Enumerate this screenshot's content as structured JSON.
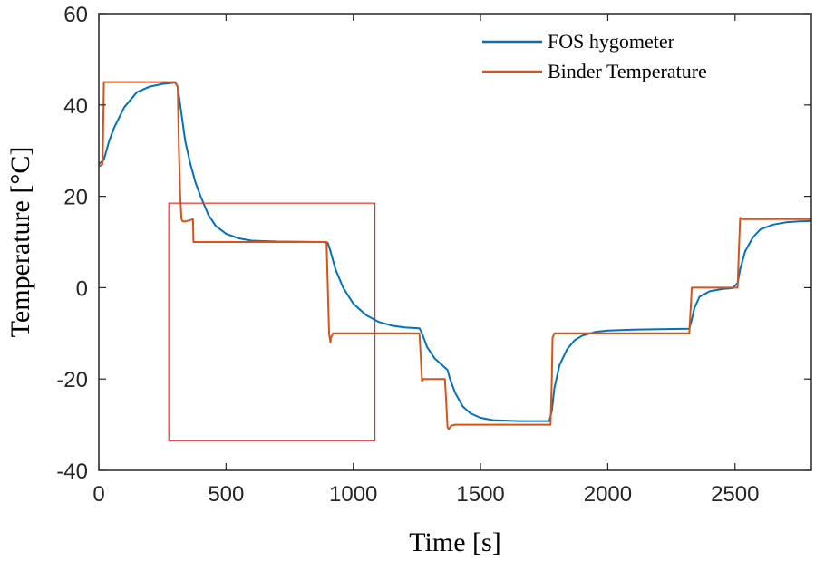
{
  "chart_data": {
    "type": "line",
    "title": "",
    "xlabel": "Time [s]",
    "ylabel": "Temperature [°C]",
    "xlim": [
      0,
      2800
    ],
    "ylim": [
      -40,
      60
    ],
    "xticks": [
      0,
      500,
      1000,
      1500,
      2000,
      2500
    ],
    "xtick_labels": [
      "0",
      "500",
      "1000",
      "1500",
      "2000",
      "2500"
    ],
    "yticks": [
      -40,
      -20,
      0,
      20,
      40,
      60
    ],
    "ytick_labels": [
      "-40",
      "-20",
      "0",
      "20",
      "40",
      "60"
    ],
    "grid": false,
    "legend_position": "top-right",
    "series": [
      {
        "name": "FOS hygometer",
        "color": "#0072BD",
        "x": [
          0,
          20,
          40,
          60,
          100,
          150,
          200,
          250,
          300,
          310,
          320,
          330,
          340,
          360,
          380,
          400,
          430,
          460,
          500,
          550,
          600,
          700,
          800,
          880,
          900,
          910,
          930,
          960,
          1000,
          1050,
          1100,
          1150,
          1200,
          1260,
          1270,
          1290,
          1320,
          1350,
          1370,
          1380,
          1400,
          1430,
          1460,
          1500,
          1550,
          1600,
          1650,
          1700,
          1770,
          1780,
          1790,
          1810,
          1840,
          1870,
          1900,
          1950,
          2000,
          2100,
          2200,
          2320,
          2330,
          2340,
          2360,
          2400,
          2450,
          2490,
          2510,
          2520,
          2540,
          2570,
          2600,
          2650,
          2700,
          2750,
          2800
        ],
        "y": [
          27,
          28,
          32,
          35,
          39.5,
          42.8,
          44,
          44.6,
          44.9,
          44,
          40,
          36,
          32,
          27,
          23,
          20,
          16,
          13.5,
          11.8,
          10.8,
          10.3,
          10.1,
          10.05,
          10,
          9.8,
          8,
          4,
          0,
          -3.5,
          -6,
          -7.5,
          -8.3,
          -8.7,
          -8.9,
          -10,
          -13,
          -15.5,
          -17,
          -18,
          -20,
          -23,
          -26,
          -27.5,
          -28.5,
          -29,
          -29.1,
          -29.2,
          -29.2,
          -29.2,
          -27,
          -22,
          -17,
          -13.5,
          -11.5,
          -10.5,
          -9.7,
          -9.4,
          -9.2,
          -9.1,
          -9,
          -7,
          -4.5,
          -2,
          -0.8,
          -0.3,
          -0.1,
          1,
          4,
          8,
          11,
          12.8,
          13.8,
          14.3,
          14.5,
          14.6
        ]
      },
      {
        "name": "Binder Temperature",
        "color": "#D95319",
        "x": [
          0,
          15,
          20,
          25,
          40,
          100,
          200,
          300,
          310,
          315,
          320,
          325,
          330,
          340,
          360,
          370,
          372,
          375,
          380,
          400,
          500,
          600,
          700,
          800,
          895,
          900,
          905,
          910,
          912,
          920,
          950,
          1000,
          1100,
          1200,
          1260,
          1265,
          1270,
          1275,
          1280,
          1300,
          1350,
          1360,
          1365,
          1370,
          1375,
          1385,
          1400,
          1500,
          1600,
          1700,
          1775,
          1780,
          1783,
          1790,
          1800,
          1900,
          2000,
          2100,
          2200,
          2320,
          2325,
          2330,
          2340,
          2400,
          2500,
          2510,
          2515,
          2520,
          2530,
          2600,
          2700,
          2800
        ],
        "y": [
          26.5,
          27,
          45,
          45,
          45,
          45,
          45,
          45,
          44,
          30,
          20,
          15,
          14.5,
          14.5,
          14.8,
          15,
          10,
          10,
          10,
          10,
          10,
          10,
          10,
          10,
          10,
          0,
          -10,
          -12,
          -11,
          -10,
          -10,
          -10,
          -10,
          -10,
          -10,
          -15,
          -20.5,
          -20,
          -20,
          -20,
          -20,
          -20,
          -25,
          -30.5,
          -31,
          -30.2,
          -30,
          -30,
          -30,
          -30,
          -30,
          -20,
          -11,
          -10,
          -10,
          -10,
          -10,
          -10,
          -10,
          -10,
          -5,
          0,
          0,
          0,
          0,
          0,
          8,
          15.3,
          15,
          15,
          15,
          15
        ]
      }
    ],
    "annotations": [
      {
        "type": "rectangle",
        "color": "#E8302A",
        "x0": 275,
        "x1": 1085,
        "y0": -33.5,
        "y1": 18.5
      }
    ]
  }
}
